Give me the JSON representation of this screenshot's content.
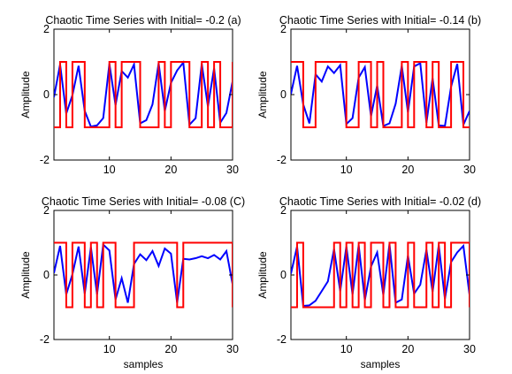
{
  "chart_data": [
    {
      "type": "line",
      "title": "Chaotic Time Series with Initial= -0.2 (a)",
      "xlabel": "",
      "ylabel": "Amplitude",
      "xlim": [
        1,
        30
      ],
      "ylim": [
        -2,
        2
      ],
      "xticks": [
        "10",
        "20",
        "30"
      ],
      "yticks": [
        "-2",
        "0",
        "2"
      ],
      "grid": false,
      "series": [
        {
          "color": "#0000ff",
          "style": "line",
          "x": [
            1,
            2,
            3,
            4,
            5,
            6,
            7,
            8,
            9,
            10,
            11,
            12,
            13,
            14,
            15,
            16,
            17,
            18,
            19,
            20,
            21,
            22,
            23,
            24,
            25,
            26,
            27,
            28,
            29,
            30
          ],
          "values": [
            -0.08,
            0.92,
            -0.58,
            -0.02,
            0.88,
            -0.5,
            -0.98,
            -0.94,
            -0.72,
            0.94,
            -0.32,
            0.72,
            0.52,
            0.92,
            -0.88,
            -0.78,
            -0.3,
            0.96,
            -0.5,
            0.36,
            0.74,
            0.98,
            -0.92,
            -0.72,
            0.94,
            -0.36,
            0.8,
            -0.86,
            -0.56,
            0.4
          ]
        },
        {
          "color": "#ff0000",
          "style": "step",
          "x": [
            1,
            2,
            3,
            4,
            5,
            6,
            7,
            8,
            9,
            10,
            11,
            12,
            13,
            14,
            15,
            16,
            17,
            18,
            19,
            20,
            21,
            22,
            23,
            24,
            25,
            26,
            27,
            28,
            29,
            30
          ],
          "values": [
            -1,
            1,
            -1,
            1,
            1,
            -1,
            -1,
            -1,
            -1,
            1,
            -1,
            1,
            1,
            1,
            -1,
            -1,
            -1,
            1,
            -1,
            1,
            1,
            1,
            -1,
            -1,
            1,
            -1,
            1,
            -1,
            -1,
            1
          ]
        }
      ]
    },
    {
      "type": "line",
      "title": "Chaotic Time Series with Initial= -0.14 (b)",
      "xlabel": "",
      "ylabel": "Amplitude",
      "xlim": [
        1,
        30
      ],
      "ylim": [
        -2,
        2
      ],
      "xticks": [
        "10",
        "20",
        "30"
      ],
      "yticks": [
        "-2",
        "0",
        "2"
      ],
      "grid": false,
      "series": [
        {
          "color": "#0000ff",
          "style": "line",
          "x": [
            1,
            2,
            3,
            4,
            5,
            6,
            7,
            8,
            9,
            10,
            11,
            12,
            13,
            14,
            15,
            16,
            17,
            18,
            19,
            20,
            21,
            22,
            23,
            24,
            25,
            26,
            27,
            28,
            29,
            30
          ],
          "values": [
            0.02,
            0.88,
            -0.3,
            -0.88,
            0.62,
            0.4,
            0.86,
            0.66,
            0.9,
            -0.9,
            -0.72,
            0.52,
            0.84,
            -0.66,
            0.28,
            -0.96,
            -0.88,
            -0.28,
            0.88,
            -0.54,
            0.86,
            0.96,
            -0.86,
            0.5,
            -0.94,
            -0.96,
            0.24,
            0.94,
            -0.92,
            -0.5
          ]
        },
        {
          "color": "#ff0000",
          "style": "step",
          "x": [
            1,
            2,
            3,
            4,
            5,
            6,
            7,
            8,
            9,
            10,
            11,
            12,
            13,
            14,
            15,
            16,
            17,
            18,
            19,
            20,
            21,
            22,
            23,
            24,
            25,
            26,
            27,
            28,
            29,
            30
          ],
          "values": [
            1,
            1,
            -1,
            -1,
            1,
            1,
            1,
            1,
            1,
            -1,
            -1,
            1,
            1,
            -1,
            1,
            -1,
            -1,
            -1,
            1,
            -1,
            1,
            1,
            -1,
            1,
            -1,
            -1,
            1,
            1,
            -1,
            -1
          ]
        }
      ]
    },
    {
      "type": "line",
      "title": "Chaotic Time Series with Initial= -0.08 (C)",
      "xlabel": "",
      "ylabel": "Amplitude",
      "xlim": [
        1,
        30
      ],
      "ylim": [
        -2,
        2
      ],
      "xticks": [
        "10",
        "20",
        "30"
      ],
      "yticks": [
        "-2",
        "0",
        "2"
      ],
      "grid": false,
      "series": [
        {
          "color": "#0000ff",
          "style": "line",
          "x": [
            1,
            2,
            3,
            4,
            5,
            6,
            7,
            8,
            9,
            10,
            11,
            12,
            13,
            14,
            15,
            16,
            17,
            18,
            19,
            20,
            21,
            22,
            23,
            24,
            25,
            26,
            27,
            28,
            29,
            30
          ],
          "values": [
            0.06,
            0.9,
            -0.6,
            0.02,
            0.88,
            -0.58,
            0.86,
            -0.6,
            0.94,
            0.76,
            -0.76,
            -0.1,
            -0.86,
            0.34,
            0.64,
            0.46,
            0.74,
            0.28,
            0.82,
            0.66,
            -0.86,
            0.5,
            0.48,
            0.52,
            0.58,
            0.52,
            0.62,
            0.48,
            0.74,
            -0.28
          ]
        },
        {
          "color": "#ff0000",
          "style": "step",
          "x": [
            1,
            2,
            3,
            4,
            5,
            6,
            7,
            8,
            9,
            10,
            11,
            12,
            13,
            14,
            15,
            16,
            17,
            18,
            19,
            20,
            21,
            22,
            23,
            24,
            25,
            26,
            27,
            28,
            29,
            30
          ],
          "values": [
            1,
            1,
            -1,
            1,
            1,
            -1,
            1,
            -1,
            1,
            1,
            -1,
            -1,
            -1,
            1,
            1,
            1,
            1,
            1,
            1,
            1,
            -1,
            1,
            1,
            1,
            1,
            1,
            1,
            1,
            1,
            -1
          ]
        }
      ]
    },
    {
      "type": "line",
      "title": "Chaotic Time Series with Initial= -0.02 (d)",
      "xlabel": "samples",
      "ylabel": "Amplitude",
      "xlim": [
        1,
        30
      ],
      "ylim": [
        -2,
        2
      ],
      "xticks": [
        "10",
        "20",
        "30"
      ],
      "yticks": [
        "-2",
        "0",
        "2"
      ],
      "grid": false,
      "series": [
        {
          "color": "#0000ff",
          "style": "line",
          "x": [
            1,
            2,
            3,
            4,
            5,
            6,
            7,
            8,
            9,
            10,
            11,
            12,
            13,
            14,
            15,
            16,
            17,
            18,
            19,
            20,
            21,
            22,
            23,
            24,
            25,
            26,
            27,
            28,
            29,
            30
          ],
          "values": [
            0.04,
            0.88,
            -0.96,
            -0.94,
            -0.8,
            -0.5,
            -0.2,
            0.8,
            -0.5,
            0.88,
            -0.6,
            0.92,
            -0.78,
            0.26,
            0.7,
            -0.62,
            0.96,
            -0.86,
            -0.76,
            0.6,
            -0.58,
            -0.3,
            0.78,
            -0.52,
            0.92,
            -0.74,
            0.4,
            0.7,
            0.9,
            -0.62
          ]
        },
        {
          "color": "#ff0000",
          "style": "step",
          "x": [
            1,
            2,
            3,
            4,
            5,
            6,
            7,
            8,
            9,
            10,
            11,
            12,
            13,
            14,
            15,
            16,
            17,
            18,
            19,
            20,
            21,
            22,
            23,
            24,
            25,
            26,
            27,
            28,
            29,
            30
          ],
          "values": [
            -1,
            1,
            -1,
            -1,
            -1,
            -1,
            -1,
            1,
            -1,
            1,
            -1,
            1,
            -1,
            1,
            1,
            -1,
            1,
            -1,
            -1,
            1,
            -1,
            -1,
            1,
            -1,
            1,
            -1,
            1,
            1,
            1,
            -1
          ]
        }
      ]
    }
  ],
  "bottom_xlabels": [
    "samples",
    "samples"
  ]
}
